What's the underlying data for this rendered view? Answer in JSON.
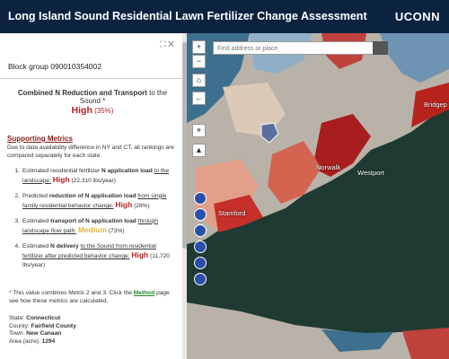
{
  "header": {
    "title": "Long Island Sound Residential Lawn Fertilizer Change Assessment",
    "logo": "UCONN"
  },
  "panel": {
    "heading": "Block group 090010354002"
  },
  "summary": {
    "title": "Combined N Reduction and Transport",
    "title_tail": "to the Sound *",
    "rating": "High",
    "percent": "(35%)"
  },
  "metrics": {
    "title": "Supporting Metrics",
    "note": "Due to data availability difference in NY and CT, all rankings are compared separately for each state.",
    "items": [
      {
        "number": "1.",
        "lead": "Estimated residential fertilizer",
        "strong": "N application load",
        "rest": "to the landscape:",
        "rating": "High",
        "value": "(22,310 lbs/year)"
      },
      {
        "number": "2.",
        "lead": "Predicted",
        "strong": "reduction of N application load",
        "rest": "from single family residential behavior change:",
        "rating": "High",
        "value": "(28%)"
      },
      {
        "number": "3.",
        "lead": "Estimated",
        "strong": "transport of N application load",
        "rest": "through landscape flow path:",
        "rating": "Medium",
        "value": "(73%)"
      },
      {
        "number": "4.",
        "lead": "Estimated",
        "strong": "N delivery",
        "rest": "to the Sound from residential fertilizer after predicted behavior change:",
        "rating": "High",
        "value": "(11,720 lbs/year)"
      }
    ]
  },
  "footnote": {
    "before": "* This value combines Metric 2 and 3. Click the",
    "link": "Method",
    "after": "page see how these metrics are calculated."
  },
  "details": [
    {
      "label": "State:",
      "value": "Connecticut"
    },
    {
      "label": "County:",
      "value": "Fairfield County"
    },
    {
      "label": "Town:",
      "value": "New Canaan"
    },
    {
      "label": "Area (acre):",
      "value": "1294"
    }
  ],
  "search": {
    "placeholder": "Find address or place"
  },
  "map_labels": [
    "Westport",
    "Norwalk",
    "Stamford",
    "Bridgep"
  ]
}
